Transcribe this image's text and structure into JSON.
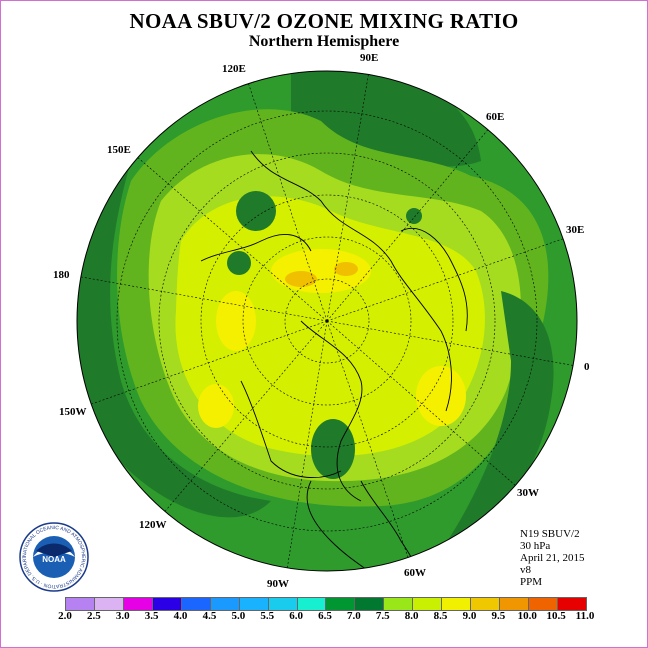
{
  "title": "NOAA SBUV/2 OZONE MIXING RATIO",
  "subtitle": "Northern Hemisphere",
  "longitude_labels": {
    "e90": "90E",
    "e60": "60E",
    "e30": "30E",
    "zero": "0",
    "w30": "30W",
    "w60": "60W",
    "w90": "90W",
    "w120": "120W",
    "w150": "150W",
    "d180": "180",
    "e150": "150E",
    "e120": "120E"
  },
  "info": {
    "instrument": "N19 SBUV/2",
    "level": "30 hPa",
    "date": "April 21, 2015",
    "version": "v8",
    "units": "PPM"
  },
  "colorbar": {
    "labels": [
      "2.0",
      "2.5",
      "3.0",
      "3.5",
      "4.0",
      "4.5",
      "5.0",
      "5.5",
      "6.0",
      "6.5",
      "7.0",
      "7.5",
      "8.0",
      "8.5",
      "9.0",
      "9.5",
      "10.0",
      "10.5",
      "11.0"
    ],
    "colors": [
      "#b681f0",
      "#dcb3f2",
      "#e600e6",
      "#2b00e6",
      "#1a66ff",
      "#1a99ff",
      "#19b2ff",
      "#19ccee",
      "#17f0d0",
      "#009632",
      "#007830",
      "#99e619",
      "#c8f000",
      "#f0f000",
      "#f0c800",
      "#f09600",
      "#f06400",
      "#e60000",
      "#8c4b32"
    ]
  },
  "logo": {
    "text": "NOAA",
    "ring_text": "NATIONAL OCEANIC AND ATMOSPHERIC ADMINISTRATION · U.S. DEPARTMENT OF COMMERCE"
  },
  "map_colors": {
    "ocean_ring": "#33a02c",
    "dark_green": "#1f7a2a",
    "mid_green": "#66bb22",
    "light_green": "#a6dc1f",
    "yellow_green": "#d4f000",
    "yellow": "#f5f000",
    "orange": "#f0c000",
    "coast": "#000000"
  }
}
